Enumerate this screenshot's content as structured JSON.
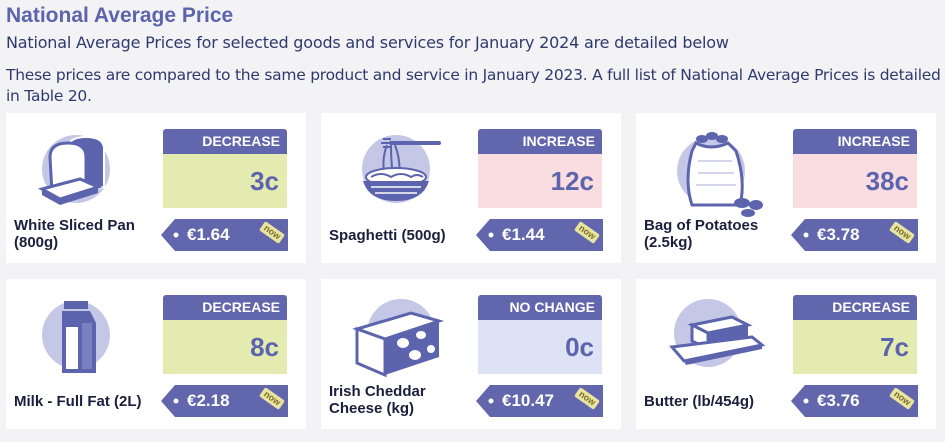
{
  "header": {
    "title": "National Average Price",
    "subtitle": "National Average Prices for selected goods and services for January 2024 are detailed below",
    "intro": "These prices are compared to the same product and service in January 2023. A full list of National Average Prices is detailed in Table 20."
  },
  "colors": {
    "accent": "#6166ad",
    "decrease_bg": "#e4ebb1",
    "increase_bg": "#f9dde1",
    "nochange_bg": "#dde2f4",
    "icon_circle": "#c4c7e6"
  },
  "now_label": "now",
  "products": [
    {
      "name": "White Sliced Pan (800g)",
      "icon": "bread-icon",
      "change_label": "DECREASE",
      "change_value": "3c",
      "price": "€1.64"
    },
    {
      "name": "Spaghetti (500g)",
      "icon": "spaghetti-icon",
      "change_label": "INCREASE",
      "change_value": "12c",
      "price": "€1.44"
    },
    {
      "name": "Bag of Potatoes (2.5kg)",
      "icon": "potatoes-icon",
      "change_label": "INCREASE",
      "change_value": "38c",
      "price": "€3.78"
    },
    {
      "name": "Milk - Full Fat (2L)",
      "icon": "milk-carton-icon",
      "change_label": "DECREASE",
      "change_value": "8c",
      "price": "€2.18"
    },
    {
      "name": "Irish Cheddar Cheese (kg)",
      "icon": "cheese-icon",
      "change_label": "NO CHANGE",
      "change_value": "0c",
      "price": "€10.47"
    },
    {
      "name": "Butter (lb/454g)",
      "icon": "butter-icon",
      "change_label": "DECREASE",
      "change_value": "7c",
      "price": "€3.76"
    }
  ]
}
